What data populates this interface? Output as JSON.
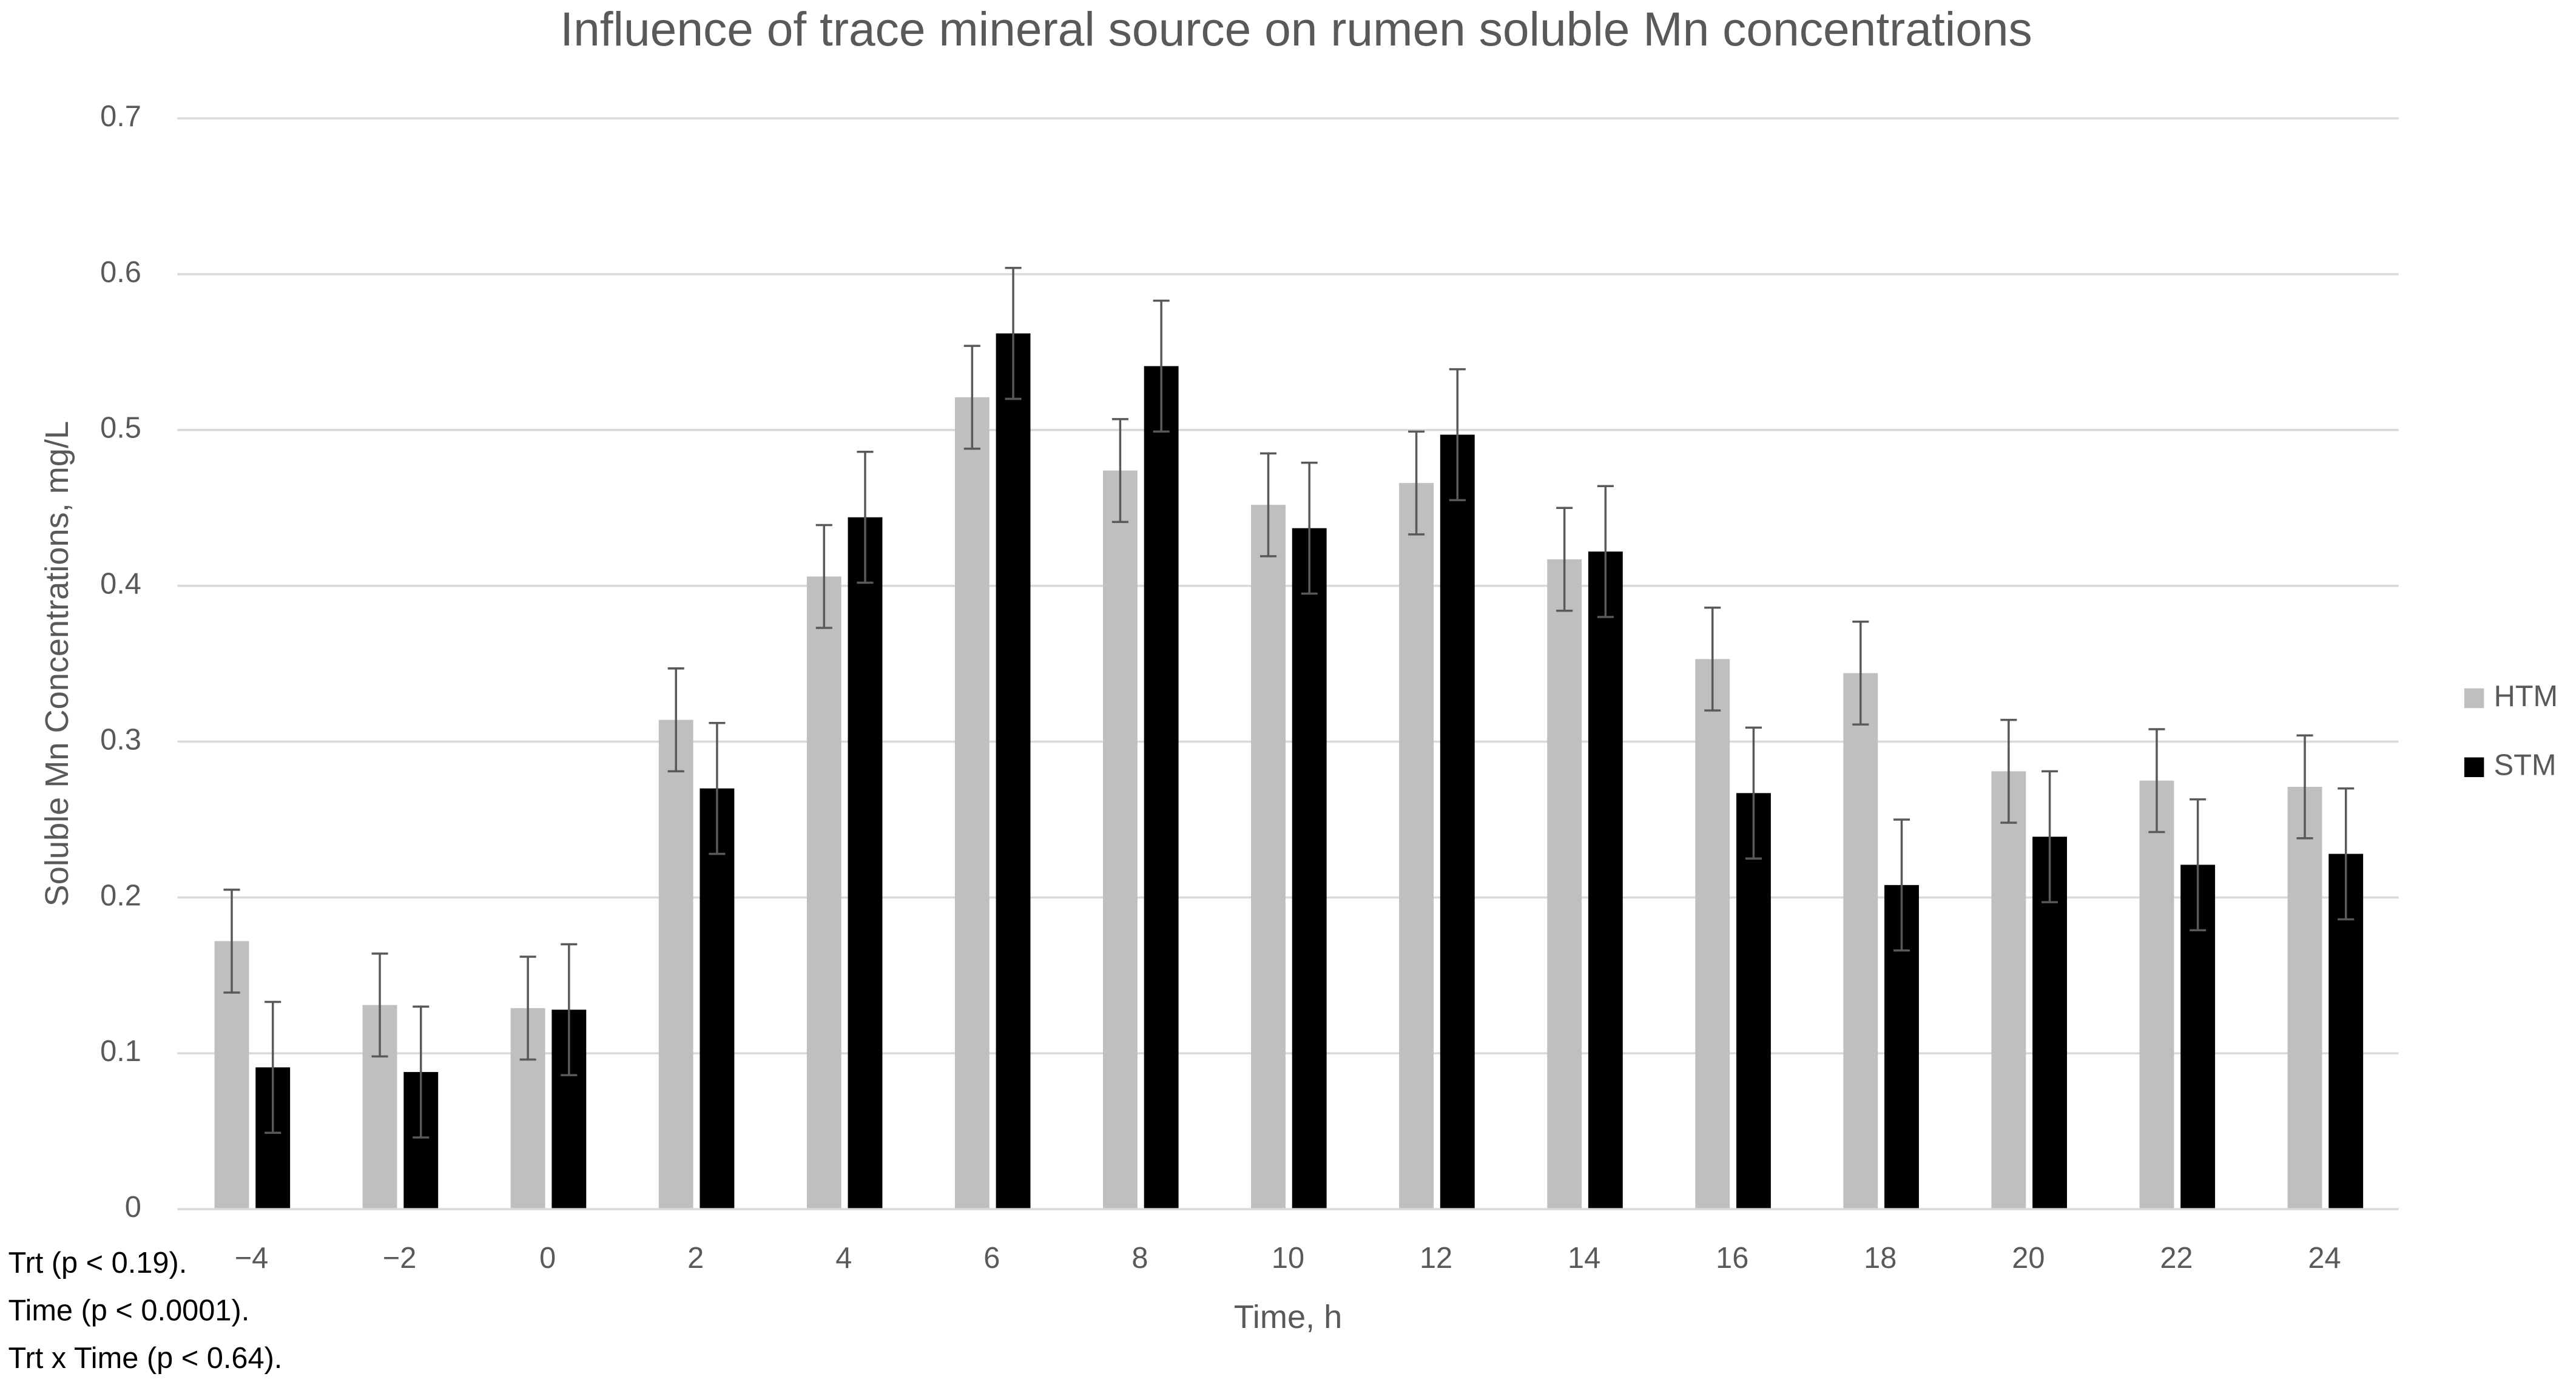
{
  "chart_data": {
    "type": "bar",
    "title": "Influence of trace mineral source on rumen soluble Mn concentrations",
    "x_label": "Time, h",
    "y_label": "Soluble Mn Concentrations, mg/L",
    "categories": [
      "−4",
      "−2",
      "0",
      "2",
      "4",
      "6",
      "8",
      "10",
      "12",
      "14",
      "16",
      "18",
      "20",
      "22",
      "24"
    ],
    "series": [
      {
        "name": "HTM",
        "color": "#bfbfbf",
        "values": [
          0.172,
          0.131,
          0.129,
          0.314,
          0.406,
          0.521,
          0.474,
          0.452,
          0.466,
          0.417,
          0.353,
          0.344,
          0.281,
          0.275,
          0.271
        ],
        "errors": [
          0.033,
          0.033,
          0.033,
          0.033,
          0.033,
          0.033,
          0.033,
          0.033,
          0.033,
          0.033,
          0.033,
          0.033,
          0.033,
          0.033,
          0.033
        ]
      },
      {
        "name": "STM",
        "color": "#000000",
        "values": [
          0.091,
          0.088,
          0.128,
          0.27,
          0.444,
          0.562,
          0.541,
          0.437,
          0.497,
          0.422,
          0.267,
          0.208,
          0.239,
          0.221,
          0.228
        ],
        "errors": [
          0.042,
          0.042,
          0.042,
          0.042,
          0.042,
          0.042,
          0.042,
          0.042,
          0.042,
          0.042,
          0.042,
          0.042,
          0.042,
          0.042,
          0.042
        ]
      }
    ],
    "ylim": [
      0,
      0.7
    ],
    "yticks": [
      0,
      0.1,
      0.2,
      0.3,
      0.4,
      0.5,
      0.6,
      0.7
    ],
    "grid": true,
    "legend": "right",
    "annotations": [
      "Trt (p < 0.19).",
      "Time (p < 0.0001).",
      "Trt x Time (p < 0.64)."
    ]
  }
}
